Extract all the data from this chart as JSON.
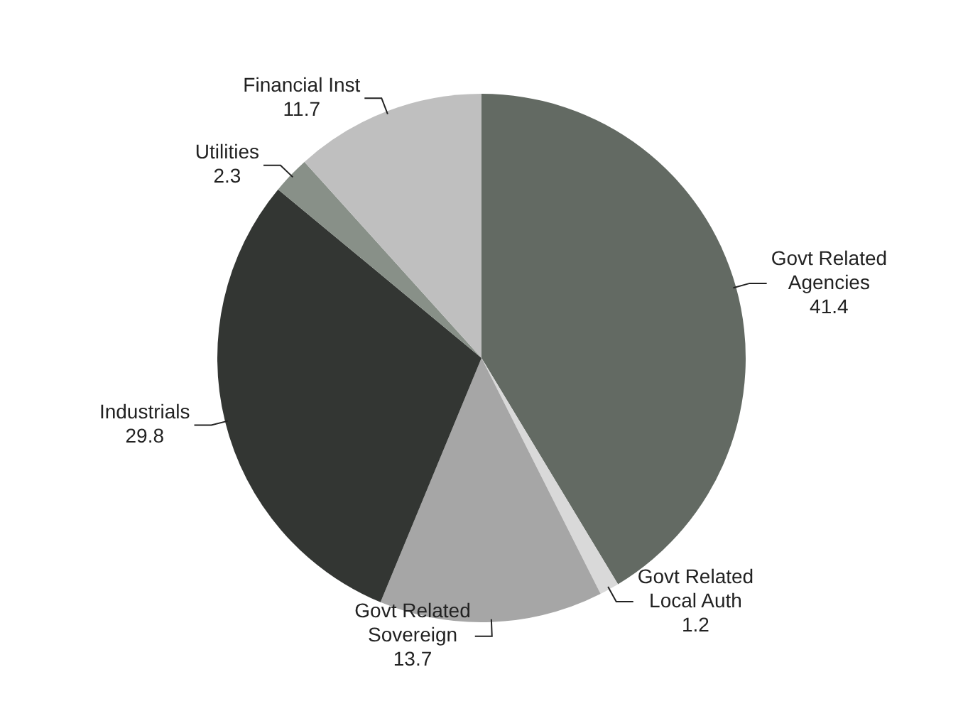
{
  "chart_data": {
    "type": "pie",
    "categories": [
      "Govt Related Agencies",
      "Govt Related Local Auth",
      "Govt Related Sovereign",
      "Industrials",
      "Utilities",
      "Financial Inst"
    ],
    "values": [
      41.4,
      1.2,
      13.7,
      29.8,
      2.3,
      11.7
    ],
    "colors": [
      "#636a63",
      "#d9d9d9",
      "#a6a6a6",
      "#333633",
      "#889088",
      "#bfbfbf"
    ],
    "data_labels": true,
    "legend": false
  }
}
